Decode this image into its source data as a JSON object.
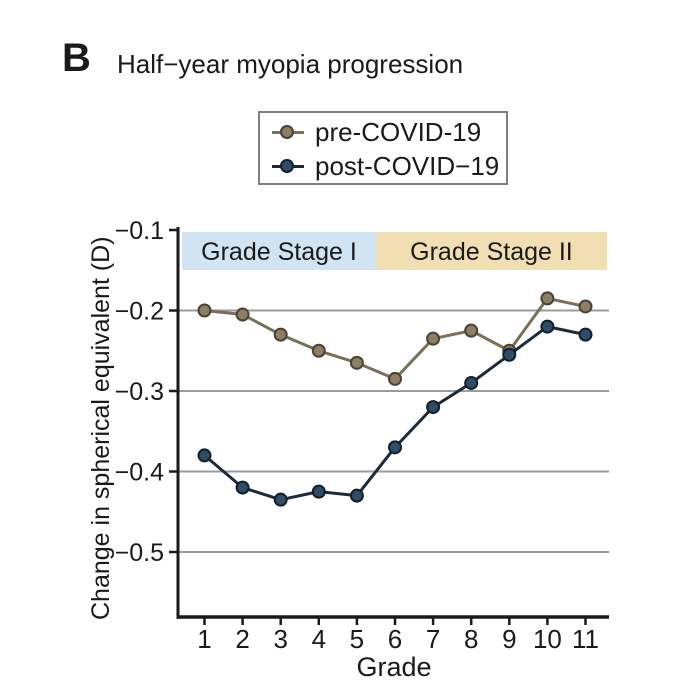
{
  "page": {
    "background": "#ffffff"
  },
  "header": {
    "panel_label": "B",
    "title": "Half−year myopia progression"
  },
  "legend": {
    "entries": [
      {
        "label": "pre-COVID-19",
        "series": "pre"
      },
      {
        "label": "post-COVID−19",
        "series": "post"
      }
    ]
  },
  "chart_data": {
    "type": "line",
    "title": "Half−year myopia progression",
    "xlabel": "Grade",
    "ylabel": "Change in spherical equivalent (D)",
    "x": [
      1,
      2,
      3,
      4,
      5,
      6,
      7,
      8,
      9,
      10,
      11
    ],
    "xtick_labels": [
      "1",
      "2",
      "3",
      "4",
      "5",
      "6",
      "7",
      "8",
      "9",
      "10",
      "11"
    ],
    "series": [
      {
        "id": "pre",
        "name": "pre-COVID-19",
        "marker_color": "#8c7f66",
        "marker_edge": "#4a4234",
        "line_color": "#77705a",
        "values": [
          -0.2,
          -0.205,
          -0.23,
          -0.25,
          -0.265,
          -0.285,
          -0.235,
          -0.225,
          -0.25,
          -0.185,
          -0.195
        ]
      },
      {
        "id": "post",
        "name": "post-COVID−19",
        "marker_color": "#2f4d66",
        "marker_edge": "#131f2b",
        "line_color": "#1c2b39",
        "values": [
          -0.38,
          -0.42,
          -0.435,
          -0.425,
          -0.43,
          -0.37,
          -0.32,
          -0.29,
          -0.255,
          -0.22,
          -0.23
        ]
      }
    ],
    "ylim": [
      -0.581,
      -0.1
    ],
    "yticks": [
      -0.1,
      -0.2,
      -0.3,
      -0.4,
      -0.5
    ],
    "ytick_labels": [
      "−0.1",
      "−0.2",
      "−0.3",
      "−0.4",
      "−0.5"
    ],
    "gridlines": [
      -0.2,
      -0.3,
      -0.4,
      -0.5
    ],
    "grid_color": "#9b9b9b",
    "axis_color": "#1a1a1a",
    "bands": [
      {
        "label": "Grade Stage I",
        "x_from": null,
        "x_to": 5.5,
        "color": "#d0e4f3"
      },
      {
        "label": "Grade Stage II",
        "x_from": 5.5,
        "x_to": null,
        "color": "#f1deb2"
      }
    ],
    "legend_position": "top-center",
    "grid": "horizontal-only"
  }
}
